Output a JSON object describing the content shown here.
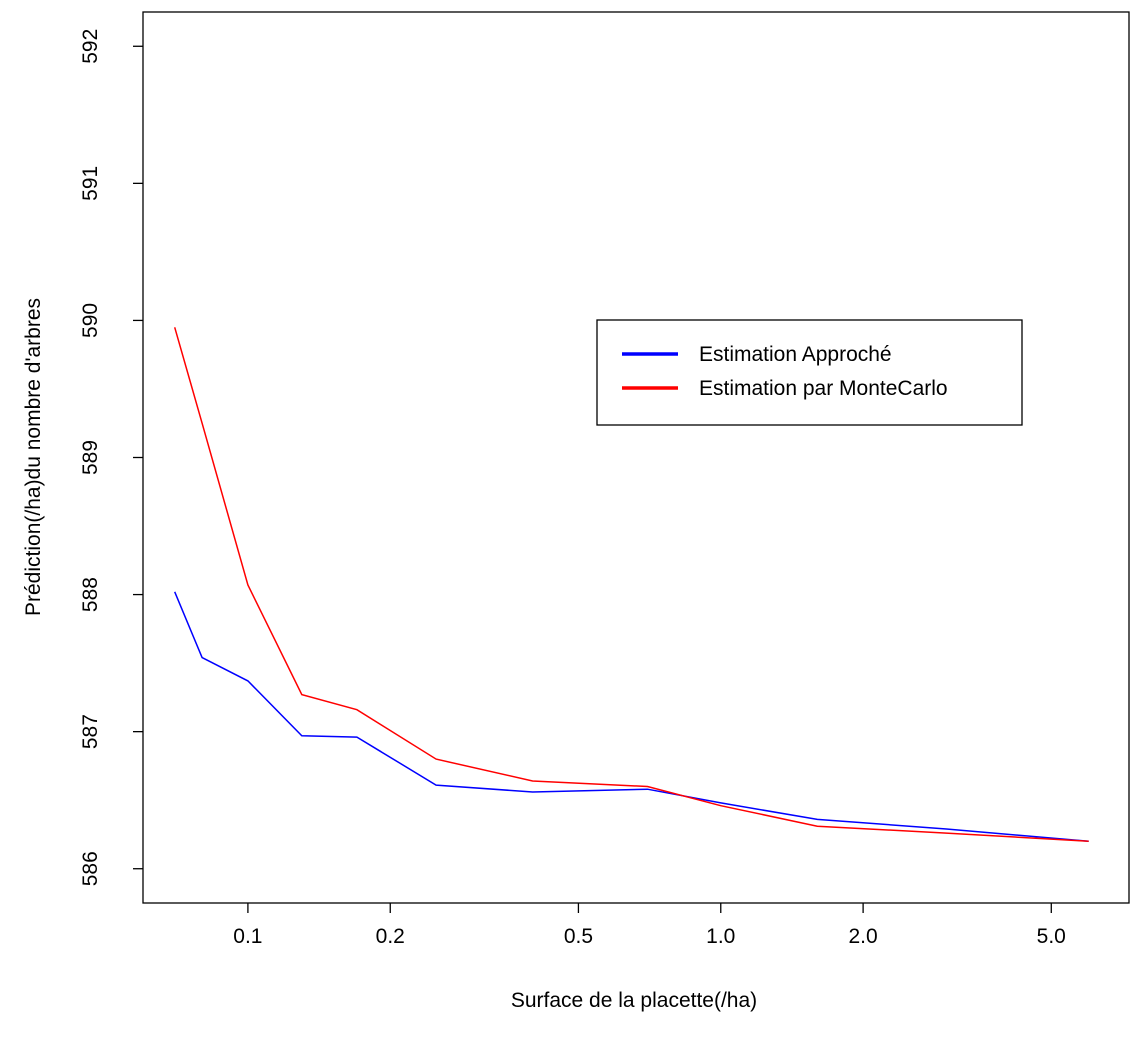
{
  "chart_data": {
    "type": "line",
    "title": "",
    "xlabel": "Surface de la placette(/ha)",
    "ylabel": "Prédiction(/ha)du nombre d'arbres",
    "x_scale": "log",
    "xlim": [
      0.06,
      7.3
    ],
    "ylim": [
      585.75,
      592.25
    ],
    "x_ticks": [
      0.1,
      0.2,
      0.5,
      1.0,
      2.0,
      5.0
    ],
    "x_tick_labels": [
      "0.1",
      "0.2",
      "0.5",
      "1.0",
      "2.0",
      "5.0"
    ],
    "y_ticks": [
      586,
      587,
      588,
      589,
      590,
      591,
      592
    ],
    "y_tick_labels": [
      "586",
      "587",
      "588",
      "589",
      "590",
      "591",
      "592"
    ],
    "grid": false,
    "legend_position": "right-center",
    "series": [
      {
        "name": "Estimation Approché",
        "color": "#0000ff",
        "x": [
          0.07,
          0.08,
          0.1,
          0.13,
          0.17,
          0.25,
          0.4,
          0.7,
          1.0,
          1.6,
          3.0,
          6.0
        ],
        "y": [
          588.02,
          587.54,
          587.37,
          586.97,
          586.96,
          586.61,
          586.56,
          586.58,
          586.48,
          586.36,
          586.29,
          586.2
        ]
      },
      {
        "name": "Estimation par MonteCarlo",
        "color": "#ff0000",
        "x": [
          0.07,
          0.08,
          0.1,
          0.13,
          0.17,
          0.25,
          0.4,
          0.7,
          1.0,
          1.6,
          3.0,
          6.0
        ],
        "y": [
          589.95,
          589.25,
          588.07,
          587.27,
          587.16,
          586.8,
          586.64,
          586.6,
          586.46,
          586.31,
          586.26,
          586.2
        ]
      }
    ]
  }
}
